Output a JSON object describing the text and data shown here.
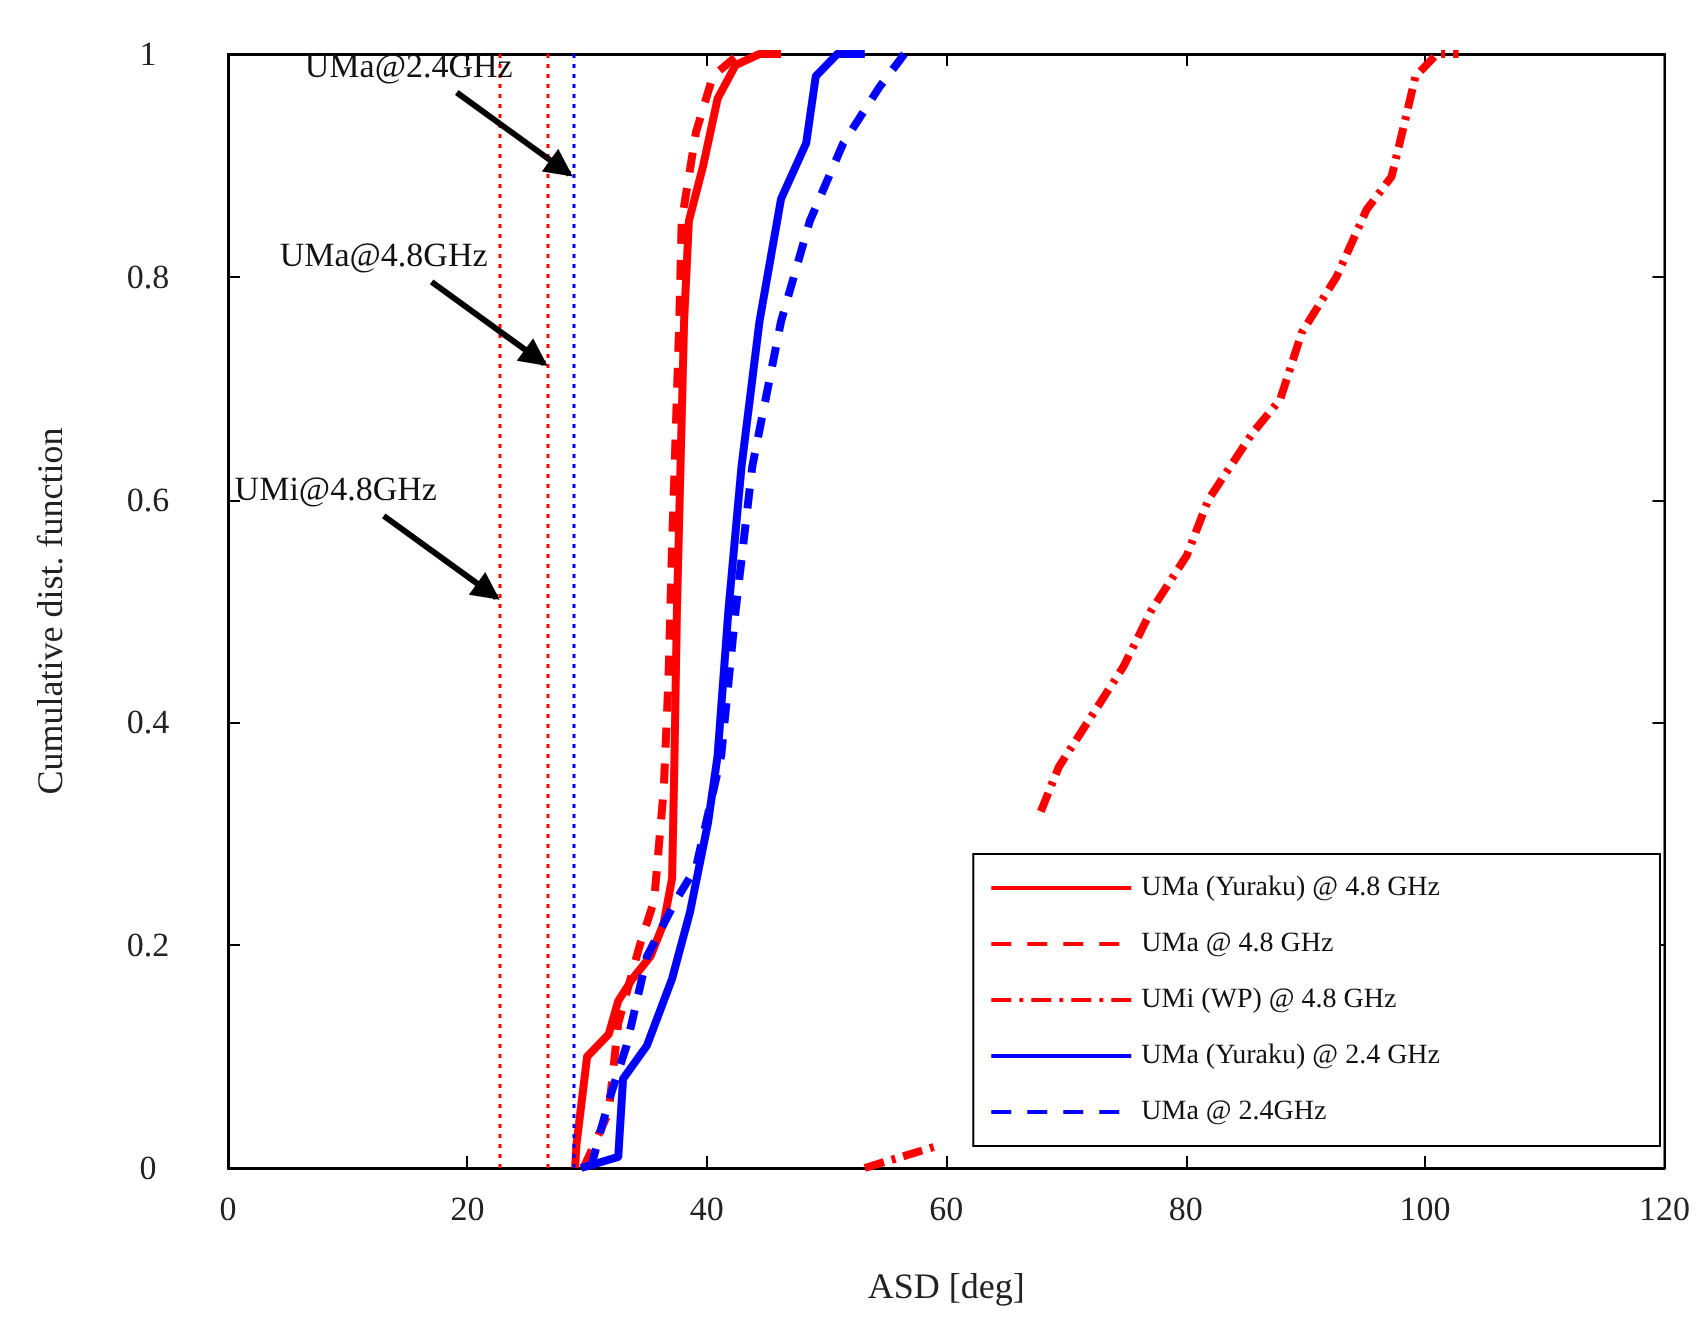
{
  "chart_data": {
    "type": "line",
    "xlabel": "ASD [deg]",
    "ylabel": "Cumulative dist. function",
    "xlim": [
      0,
      120
    ],
    "xticks": [
      0,
      20,
      40,
      60,
      80,
      100,
      120
    ],
    "ylim": [
      0,
      1
    ],
    "yticks": [
      0,
      0.2,
      0.4,
      0.6,
      0.8,
      1
    ],
    "grid": false,
    "legend": "bottom right",
    "marker": "none",
    "series": [
      {
        "name": "UMa (Yuraku) @ 4.8 GHz",
        "color": "#ff0000",
        "line_style": "solid",
        "x": [
          29.0,
          29.1,
          30.0,
          31.8,
          32.6,
          33.8,
          35.3,
          36.4,
          37.1,
          37.3,
          37.5,
          37.8,
          38.1,
          38.5,
          39.7,
          40.9,
          42.4,
          44.4,
          46.2
        ],
        "values": [
          0,
          0.02,
          0.1,
          0.12,
          0.15,
          0.17,
          0.19,
          0.22,
          0.26,
          0.37,
          0.5,
          0.63,
          0.76,
          0.85,
          0.9,
          0.96,
          0.99,
          1.0,
          1.0
        ]
      },
      {
        "name": "UMa @ 4.8 GHz",
        "color": "#ff0000",
        "line_style": "dashed",
        "x": [
          29.7,
          31.8,
          32.6,
          34.4,
          35.6,
          36.4,
          36.8,
          37.1,
          37.7,
          37.9,
          39.1,
          40.5,
          42.7
        ],
        "values": [
          0,
          0.05,
          0.13,
          0.2,
          0.24,
          0.34,
          0.44,
          0.56,
          0.76,
          0.85,
          0.93,
          0.98,
          1.0
        ]
      },
      {
        "name": "UMi (WP) @ 4.8 GHz",
        "color": "#ff0000",
        "line_style": "dashdot",
        "x": [
          53.2,
          59.3,
          null,
          67.9,
          69.4,
          71.8,
          74.8,
          77.1,
          80.1,
          81.9,
          85.6,
          87.9,
          89.7,
          92.6,
          95.1,
          97.2,
          98.1,
          99.2,
          101.0,
          102.8
        ],
        "values": [
          0,
          0.02,
          null,
          0.32,
          0.36,
          0.4,
          0.45,
          0.5,
          0.55,
          0.6,
          0.66,
          0.69,
          0.75,
          0.8,
          0.86,
          0.89,
          0.93,
          0.98,
          1.0,
          1.0
        ]
      },
      {
        "name": "UMa (Yuraku) @ 2.4 GHz",
        "color": "#0000ff",
        "line_style": "solid",
        "x": [
          29.5,
          32.6,
          33.0,
          35.0,
          37.1,
          38.6,
          40.1,
          40.9,
          41.8,
          42.9,
          44.4,
          46.2,
          48.3,
          49.1,
          50.9,
          53.2
        ],
        "values": [
          0,
          0.01,
          0.08,
          0.11,
          0.17,
          0.23,
          0.31,
          0.37,
          0.5,
          0.63,
          0.76,
          0.87,
          0.92,
          0.98,
          1.0,
          1.0
        ]
      },
      {
        "name": "UMa @ 2.4GHz",
        "color": "#0000ff",
        "line_style": "dashed",
        "x": [
          30.3,
          31.8,
          33.3,
          35.0,
          37.4,
          39.1,
          41.2,
          42.4,
          43.8,
          46.2,
          48.6,
          51.4,
          54.4,
          56.5
        ],
        "values": [
          0,
          0.06,
          0.11,
          0.19,
          0.24,
          0.27,
          0.37,
          0.5,
          0.63,
          0.76,
          0.85,
          0.92,
          0.97,
          1.0
        ]
      }
    ],
    "ref_lines": [
      {
        "axis": "x",
        "value": 22.7,
        "color": "#ff0000",
        "line_style": "dotted"
      },
      {
        "axis": "x",
        "value": 26.7,
        "color": "#ff0000",
        "line_style": "dotted"
      },
      {
        "axis": "x",
        "value": 28.8,
        "color": "#0000ff",
        "line_style": "dotted"
      }
    ],
    "annotations": [
      {
        "text": "UMa@2.4GHz",
        "x": 28.8,
        "y": 0.89
      },
      {
        "text": "UMa@4.8GHz",
        "x": 26.7,
        "y": 0.72
      },
      {
        "text": "UMi@4.8GHz",
        "x": 22.7,
        "y": 0.51
      }
    ]
  }
}
